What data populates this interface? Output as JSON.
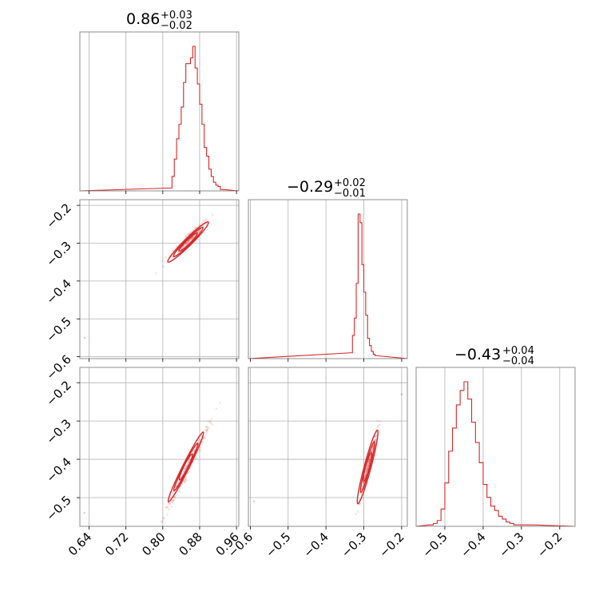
{
  "chart_data": {
    "type": "corner",
    "colors": {
      "accent": "#d62728",
      "grid": "#b0b0b0",
      "frame": "#808080"
    },
    "grid": true,
    "params": [
      {
        "range": [
          0.62,
          0.965
        ],
        "ticks": [
          "0.64",
          "0.72",
          "0.80",
          "0.88",
          "0.96"
        ],
        "title": {
          "main": "0.86",
          "sup": "+0.03",
          "sub": "−0.02"
        }
      },
      {
        "range": [
          -0.605,
          -0.185
        ],
        "ticks": [
          "−0.6",
          "−0.5",
          "−0.4",
          "−0.3",
          "−0.2"
        ],
        "title": {
          "main": "−0.29",
          "sup": "+0.02",
          "sub": "−0.01"
        }
      },
      {
        "range": [
          -0.575,
          -0.16
        ],
        "ticks": [
          "−0.5",
          "−0.4",
          "−0.3",
          "−0.2"
        ],
        "title": {
          "main": "−0.43",
          "sup": "+0.04",
          "sub": "−0.04"
        }
      }
    ],
    "histograms": [
      {
        "param": 0,
        "bin_start": 0.815,
        "bin_width": 0.005,
        "counts": [
          0.02,
          0.1,
          0.22,
          0.36,
          0.46,
          0.58,
          0.75,
          0.88,
          0.88,
          0.92,
          1.0,
          0.85,
          0.74,
          0.6,
          0.46,
          0.3,
          0.24,
          0.15,
          0.1,
          0.06,
          0.04,
          0.03,
          0.01
        ]
      },
      {
        "param": 1,
        "bin_start": -0.335,
        "bin_width": 0.005,
        "counts": [
          0.04,
          0.16,
          0.28,
          0.52,
          1.0,
          0.94,
          0.65,
          0.46,
          0.3,
          0.14,
          0.09,
          0.05,
          0.03,
          0.02
        ]
      },
      {
        "param": 2,
        "bin_start": -0.54,
        "bin_width": 0.01,
        "counts": [
          0.01,
          0.02,
          0.04,
          0.12,
          0.3,
          0.52,
          0.68,
          0.84,
          0.94,
          1.0,
          0.88,
          0.72,
          0.58,
          0.44,
          0.29,
          0.2,
          0.14,
          0.11,
          0.07,
          0.05,
          0.03,
          0.02,
          0.01,
          0.01,
          0.01,
          0.01,
          0.01
        ]
      }
    ],
    "scatter_panels": [
      {
        "x_param": 0,
        "y_param": 1,
        "samples": {
          "n": 240,
          "x_center": 0.855,
          "x_sd": 0.02,
          "slope": 1.2,
          "y_intercept": -0.29,
          "y_sd": 0.006,
          "seed": 11
        },
        "contours": {
          "center": [
            0.855,
            -0.297
          ],
          "angle": 1.2,
          "half_lengths": [
            0.02,
            0.032,
            0.044
          ],
          "half_widths": [
            0.004,
            0.006,
            0.008
          ]
        },
        "outliers": [
          [
            0.63,
            -0.55
          ]
        ]
      },
      {
        "x_param": 0,
        "y_param": 2,
        "samples": {
          "n": 260,
          "x_center": 0.855,
          "x_sd": 0.025,
          "slope": 2.4,
          "y_intercept": -0.42,
          "y_sd": 0.01,
          "seed": 23
        },
        "contours": {
          "center": [
            0.85,
            -0.42
          ],
          "angle": 2.4,
          "half_lengths": [
            0.014,
            0.026,
            0.038
          ],
          "half_widths": [
            0.003,
            0.005,
            0.007
          ]
        },
        "outliers": [
          [
            0.63,
            -0.54
          ]
        ]
      },
      {
        "x_param": 1,
        "y_param": 2,
        "samples": {
          "n": 260,
          "x_center": -0.288,
          "x_sd": 0.012,
          "slope": 3.7,
          "y_intercept": -0.42,
          "y_sd": 0.012,
          "seed": 37
        },
        "contours": {
          "center": [
            -0.29,
            -0.42
          ],
          "angle": 3.7,
          "half_lengths": [
            0.01,
            0.018,
            0.026
          ],
          "half_widths": [
            0.004,
            0.006,
            0.009
          ]
        },
        "outliers": [
          [
            -0.59,
            -0.51
          ],
          [
            -0.2,
            -0.23
          ]
        ]
      }
    ]
  }
}
